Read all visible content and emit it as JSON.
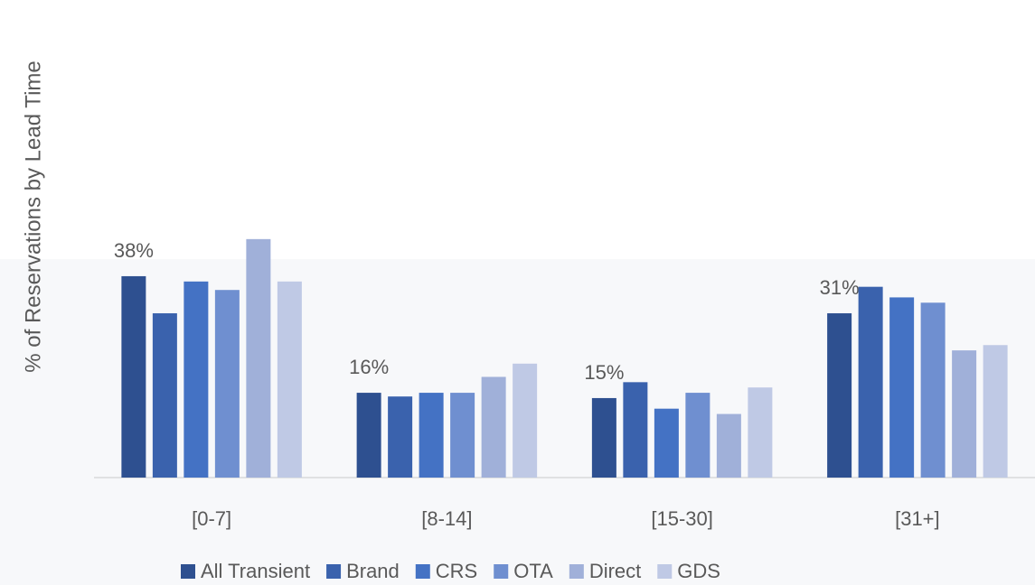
{
  "chart_data": {
    "type": "bar",
    "y_axis_label": "% of Reservations by Lead Time",
    "categories": [
      "[0-7]",
      "[8-14]",
      "[15-30]",
      "[31+]"
    ],
    "series": [
      {
        "name": "All Transient",
        "color": "#2e5090",
        "values": [
          38,
          16,
          15,
          31
        ],
        "value_labels": [
          "38%",
          "16%",
          "15%",
          "31%"
        ]
      },
      {
        "name": "Brand",
        "color": "#3a62ad",
        "values": [
          31,
          15.3,
          18,
          36
        ]
      },
      {
        "name": "CRS",
        "color": "#4472c4",
        "values": [
          37,
          16,
          13,
          34
        ]
      },
      {
        "name": "OTA",
        "color": "#6f8fd0",
        "values": [
          35.4,
          16,
          16,
          33
        ]
      },
      {
        "name": "Direct",
        "color": "#a0b0d9",
        "values": [
          45,
          19,
          12,
          24
        ]
      },
      {
        "name": "GDS",
        "color": "#bfc9e5",
        "values": [
          37,
          21.5,
          17,
          25
        ]
      }
    ]
  }
}
